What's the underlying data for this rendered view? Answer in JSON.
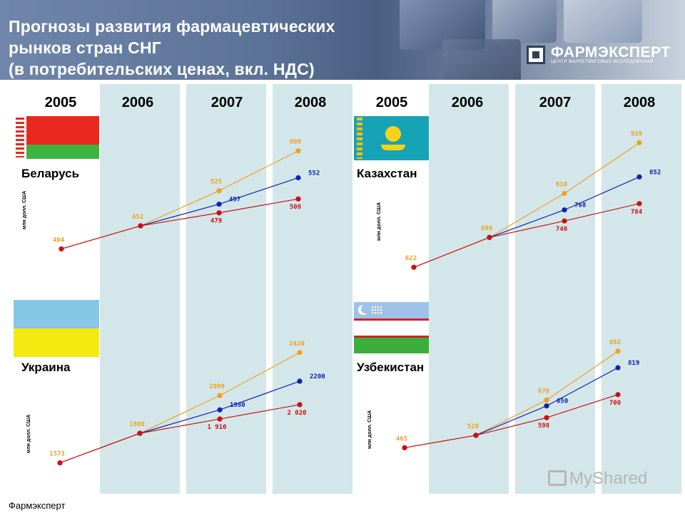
{
  "header": {
    "title_lines": [
      "Прогнозы развития фармацевтических",
      "рынков стран СНГ",
      "(в потребительских ценах, вкл. НДС)"
    ],
    "logo_name": "ФАРМЭКСПЕРТ",
    "logo_sub": "ЦЕНТР МАРКЕТИНГОВЫХ ИССЛЕДОВАНИЙ"
  },
  "years_left": [
    "2005",
    "2006",
    "2007",
    "2008"
  ],
  "years_right": [
    "2005",
    "2006",
    "2007",
    "2008"
  ],
  "footer": {
    "source": "Фармэксперт",
    "watermark": "MyShared"
  },
  "colors": {
    "stripe": "#d3e7ea",
    "orange": "#f0a020",
    "blue": "#1020b0",
    "red": "#cc1010"
  },
  "icons": [
    "logo-mark-icon",
    "slideshow-icon"
  ],
  "chart_data": [
    {
      "type": "line",
      "country": "Беларусь",
      "ylabel": "млн долл. США",
      "categories": [
        "2005",
        "2006",
        "2007",
        "2008"
      ],
      "ylim": [
        400,
        615
      ],
      "series": [
        {
          "color": "orange",
          "values": [
            404,
            452,
            525,
            608
          ],
          "labels": [
            "404",
            "452",
            "525",
            "608"
          ]
        },
        {
          "color": "blue",
          "values": [
            null,
            452,
            497,
            552
          ],
          "labels": [
            "",
            "",
            "497",
            "552"
          ]
        },
        {
          "color": "red",
          "values": [
            404,
            452,
            479,
            508
          ],
          "labels": [
            "",
            "",
            "479",
            "508"
          ]
        }
      ]
    },
    {
      "type": "line",
      "country": "Казахстан",
      "ylabel": "млн долл. США",
      "categories": [
        "2005",
        "2006",
        "2007",
        "2008"
      ],
      "ylim": [
        615,
        945
      ],
      "series": [
        {
          "color": "orange",
          "values": [
            622,
            698,
            810,
            939
          ],
          "labels": [
            "622",
            "698",
            "810",
            "939"
          ]
        },
        {
          "color": "blue",
          "values": [
            null,
            698,
            768,
            852
          ],
          "labels": [
            "",
            "",
            "768",
            "852"
          ]
        },
        {
          "color": "red",
          "values": [
            622,
            698,
            740,
            784
          ],
          "labels": [
            "",
            "",
            "740",
            "784"
          ]
        }
      ]
    },
    {
      "type": "line",
      "country": "Украина",
      "ylabel": "млн долл. США",
      "categories": [
        "2005",
        "2006",
        "2007",
        "2008"
      ],
      "ylim": [
        1560,
        2430
      ],
      "series": [
        {
          "color": "orange",
          "values": [
            1573,
            1800,
            2090,
            2420
          ],
          "labels": [
            "1573",
            "1800",
            "2090",
            "2420"
          ]
        },
        {
          "color": "blue",
          "values": [
            null,
            1800,
            1980,
            2200
          ],
          "labels": [
            "",
            "",
            "1980",
            "2200"
          ]
        },
        {
          "color": "red",
          "values": [
            1573,
            1800,
            1910,
            2020
          ],
          "labels": [
            "",
            "",
            "1 910",
            "2 020"
          ]
        }
      ]
    },
    {
      "type": "line",
      "country": "Узбекистан",
      "ylabel": "млн долл. США",
      "categories": [
        "2005",
        "2006",
        "2007",
        "2008"
      ],
      "ylim": [
        460,
        895
      ],
      "series": [
        {
          "color": "orange",
          "values": [
            465,
            520,
            676,
            892
          ],
          "labels": [
            "465",
            "520",
            "676",
            "892"
          ]
        },
        {
          "color": "blue",
          "values": [
            null,
            520,
            650,
            819
          ],
          "labels": [
            "",
            "",
            "650",
            "819"
          ]
        },
        {
          "color": "red",
          "values": [
            465,
            520,
            598,
            700
          ],
          "labels": [
            "",
            "",
            "598",
            "700"
          ]
        }
      ]
    }
  ]
}
